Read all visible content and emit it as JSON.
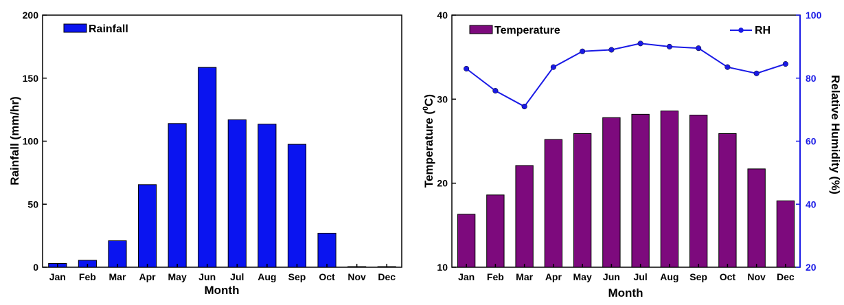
{
  "colors": {
    "rainfall": "#0a14f0",
    "temperature": "#7d0a7d",
    "rh": "#1a1ae6",
    "axis": "#000000"
  },
  "chart_data": [
    {
      "type": "bar",
      "categories": [
        "Jan",
        "Feb",
        "Mar",
        "Apr",
        "May",
        "Jun",
        "Jul",
        "Aug",
        "Sep",
        "Oct",
        "Nov",
        "Dec"
      ],
      "series": [
        {
          "name": "Rainfall",
          "values": [
            3,
            5.5,
            21,
            65.5,
            114,
            158.5,
            117,
            113.5,
            97.5,
            27,
            0.5,
            0.5
          ]
        }
      ],
      "xlabel": "Month",
      "ylabel": "Rainfall (mm/hr)",
      "ylim": [
        0,
        200
      ],
      "yticks": [
        0,
        50,
        100,
        150,
        200
      ],
      "legend": "top-left",
      "grid": false
    },
    {
      "type": "bar",
      "categories": [
        "Jan",
        "Feb",
        "Mar",
        "Apr",
        "May",
        "Jun",
        "Jul",
        "Aug",
        "Sep",
        "Oct",
        "Nov",
        "Dec"
      ],
      "series": [
        {
          "name": "Temperature",
          "type": "bar",
          "axis": "left",
          "values": [
            16.3,
            18.6,
            22.1,
            25.2,
            25.9,
            27.8,
            28.2,
            28.6,
            28.1,
            25.9,
            21.7,
            17.9
          ]
        },
        {
          "name": "RH",
          "type": "line",
          "axis": "right",
          "values": [
            83,
            76,
            71,
            83.5,
            88.5,
            89,
            91,
            90,
            89.5,
            83.5,
            81.5,
            84.5
          ]
        }
      ],
      "xlabel": "Month",
      "ylabel": "Temperature (",
      "ylabel_sup": "0",
      "ylabel_tail": "C)",
      "y2label": "Relative Humidity (%)",
      "ylim": [
        10,
        40
      ],
      "yticks": [
        10,
        20,
        30,
        40
      ],
      "y2lim": [
        20,
        100
      ],
      "y2ticks": [
        20,
        40,
        60,
        80,
        100
      ],
      "legend": "top",
      "grid": false
    }
  ]
}
